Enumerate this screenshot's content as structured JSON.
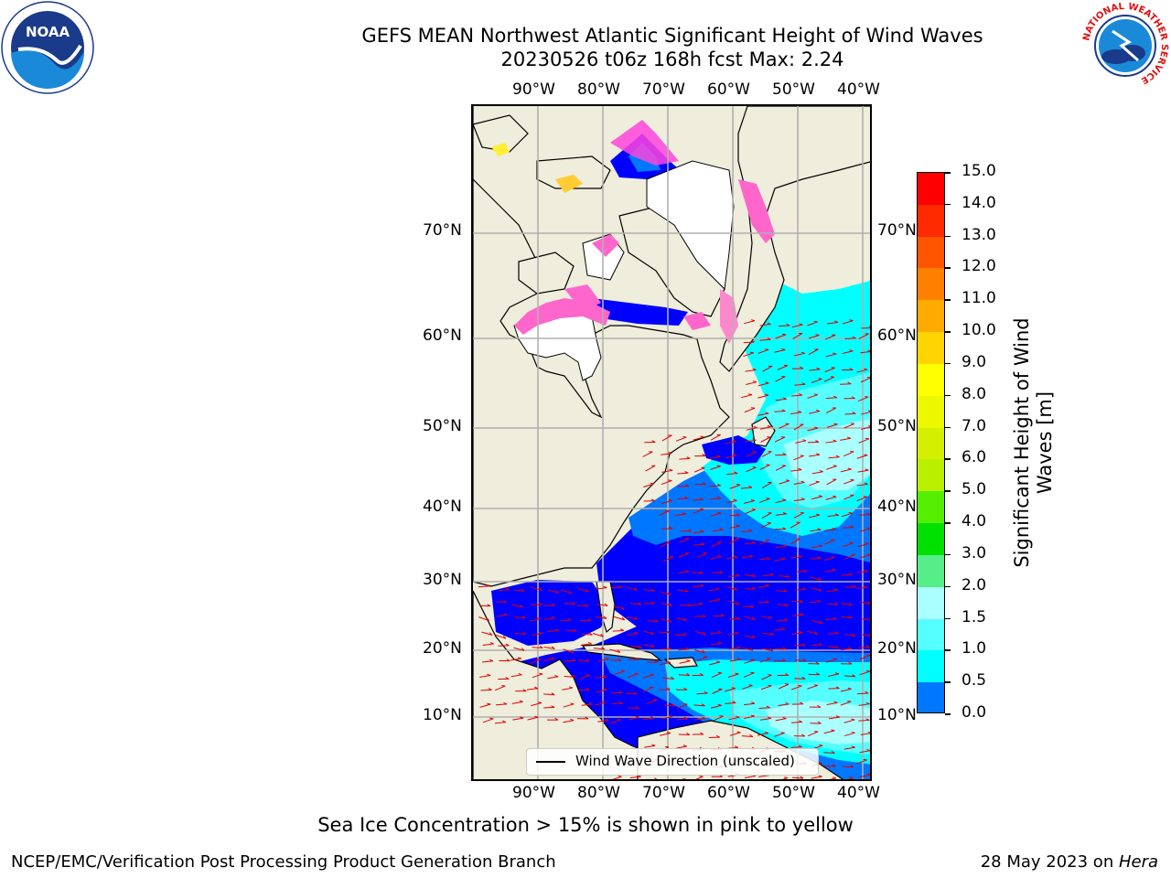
{
  "header": {
    "title_line1": "GEFS MEAN Northwest Atlantic Significant Height of Wind Waves",
    "title_line2": "20230526 t06z 168h fcst   Max: 2.24"
  },
  "logos": {
    "noaa_text": "NOAA",
    "nws_ring_text": "NATIONAL WEATHER SERVICE"
  },
  "map": {
    "lon_labels": [
      "90°W",
      "80°W",
      "70°W",
      "60°W",
      "50°W",
      "40°W"
    ],
    "lat_labels": [
      "70°N",
      "60°N",
      "50°N",
      "40°N",
      "30°N",
      "20°N",
      "10°N"
    ],
    "legend_label": "Wind Wave Direction (unscaled)",
    "max_value": 2.24,
    "colors": {
      "land": "#efeddb",
      "ice_pink": "#ff66cc",
      "ice_yellow": "#ffee33",
      "arrows": "#e00000"
    }
  },
  "colorbar": {
    "label": "Significant Height of Wind Waves [m]",
    "ticks": [
      "15.0",
      "14.0",
      "13.0",
      "12.0",
      "11.0",
      "10.0",
      "9.0",
      "8.0",
      "7.0",
      "6.0",
      "5.0",
      "4.0",
      "3.0",
      "2.0",
      "1.5",
      "1.0",
      "0.5",
      "0.0"
    ],
    "colors_top_to_bottom": [
      "#ff0000",
      "#ff2a00",
      "#ff5500",
      "#ff8000",
      "#ffaa00",
      "#ffd400",
      "#ffff00",
      "#ecf700",
      "#d4f000",
      "#b8f000",
      "#55ee00",
      "#00e000",
      "#55ee88",
      "#aaffff",
      "#55ffff",
      "#00ffff",
      "#0077ff",
      "#0000ff"
    ]
  },
  "footnote": "Sea Ice Concentration > 15% is shown in pink to yellow",
  "footer": {
    "left": "NCEP/EMC/Verification Post Processing Product Generation Branch",
    "right_prefix": "28 May 2023 on ",
    "right_host": "Hera"
  }
}
